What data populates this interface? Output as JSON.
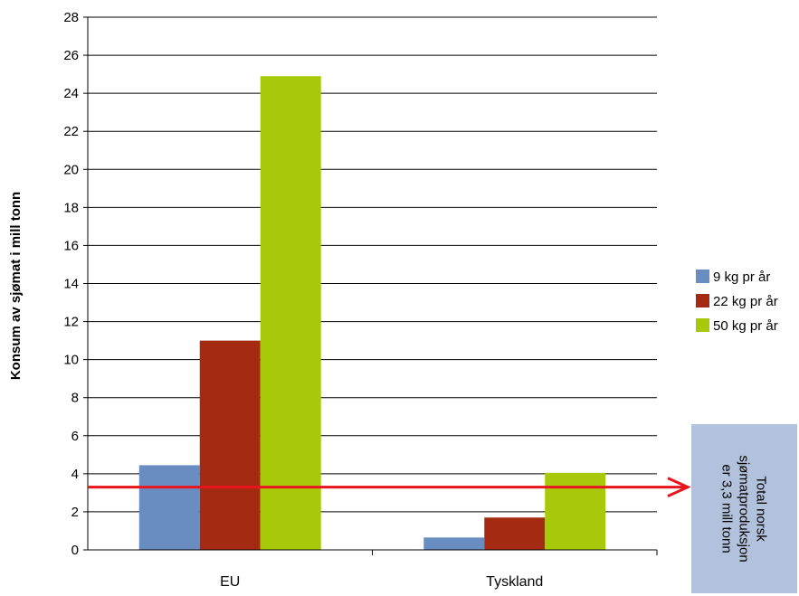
{
  "chart_data": {
    "type": "bar",
    "title": "",
    "xlabel": "",
    "ylabel": "Konsum av sjømat i mill tonn",
    "categories": [
      "EU",
      "Tyskland"
    ],
    "series": [
      {
        "name": "9 kg pr år",
        "color": "#6a8dc1",
        "values": [
          4.45,
          0.65
        ]
      },
      {
        "name": "22 kg pr år",
        "color": "#a52a12",
        "values": [
          11.0,
          1.7
        ]
      },
      {
        "name": "50 kg pr år",
        "color": "#a8c80a",
        "values": [
          24.9,
          4.05
        ]
      }
    ],
    "ylim": [
      0,
      28
    ],
    "yticks": [
      0,
      2,
      4,
      6,
      8,
      10,
      12,
      14,
      16,
      18,
      20,
      22,
      24,
      26,
      28
    ],
    "grid": true,
    "legend": "right",
    "reference_line": {
      "value": 3.3,
      "color": "#e8141e",
      "arrow": true
    },
    "annotation": {
      "lines": [
        "Total norsk",
        "sjømatproduksjon",
        "er 3,3 mill tonn"
      ],
      "background": "#b3c2dc",
      "orientation": "rotated-90"
    }
  }
}
